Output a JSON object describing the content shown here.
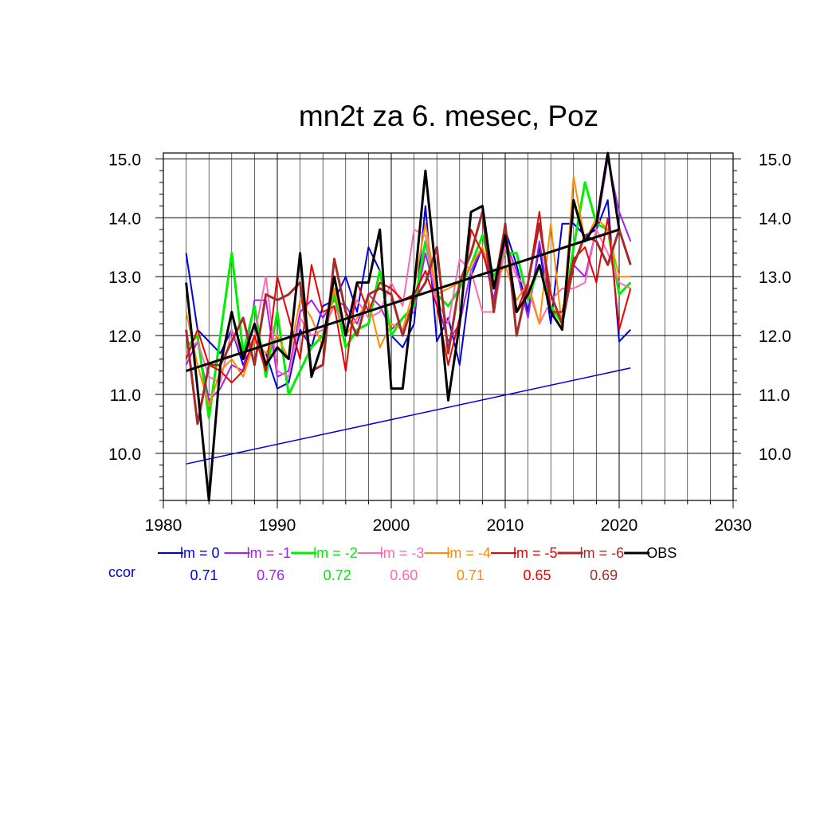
{
  "chart_data": {
    "type": "line",
    "title": "mn2t za 6. mesec, Poz",
    "xlim": [
      1980,
      2030
    ],
    "ylim": [
      9.2,
      15.1
    ],
    "x_ticks": [
      "1980",
      "1990",
      "2000",
      "2010",
      "2020",
      "2030"
    ],
    "y_ticks": [
      "10.0",
      "11.0",
      "12.0",
      "13.0",
      "14.0",
      "15.0"
    ],
    "grid": true,
    "legend_position": "bottom",
    "ccor_label": "ccor",
    "x": [
      1982,
      1983,
      1984,
      1985,
      1986,
      1987,
      1988,
      1989,
      1990,
      1991,
      1992,
      1993,
      1994,
      1995,
      1996,
      1997,
      1998,
      1999,
      2000,
      2001,
      2002,
      2003,
      2004,
      2005,
      2006,
      2007,
      2008,
      2009,
      2010,
      2011,
      2012,
      2013,
      2014,
      2015,
      2016,
      2017,
      2018,
      2019,
      2020,
      2021
    ],
    "series": [
      {
        "name": "lm = 0",
        "color": "#0000dd",
        "ccor": "0.71",
        "width": 2,
        "values": [
          13.4,
          12.1,
          11.9,
          11.7,
          12.1,
          11.5,
          11.9,
          11.7,
          11.1,
          11.2,
          12.1,
          11.8,
          12.5,
          12.6,
          13.0,
          12.4,
          13.5,
          13.1,
          12.0,
          11.8,
          12.2,
          14.2,
          11.9,
          12.3,
          11.5,
          13.0,
          13.5,
          12.6,
          13.8,
          13.2,
          12.4,
          13.5,
          12.2,
          13.9,
          13.9,
          13.7,
          13.8,
          14.3,
          11.9,
          12.1
        ]
      },
      {
        "name": "lm = -1",
        "color": "#a020f0",
        "ccor": "0.76",
        "width": 2,
        "values": [
          11.5,
          11.9,
          10.9,
          11.1,
          11.5,
          11.4,
          12.6,
          12.6,
          11.3,
          11.4,
          12.4,
          12.6,
          12.3,
          12.6,
          12.5,
          12.2,
          12.7,
          12.5,
          12.1,
          12.3,
          12.4,
          13.4,
          12.6,
          11.9,
          12.2,
          13.1,
          13.5,
          12.6,
          13.6,
          13.1,
          12.3,
          13.6,
          12.4,
          12.3,
          13.2,
          13.0,
          13.8,
          15.0,
          14.1,
          13.6
        ]
      },
      {
        "name": "lm = -2",
        "color": "#00ee00",
        "ccor": "0.72",
        "width": 3,
        "values": [
          11.8,
          12.0,
          10.6,
          12.0,
          13.4,
          11.7,
          12.5,
          11.3,
          12.4,
          11.0,
          11.4,
          11.8,
          12.0,
          12.7,
          11.8,
          12.1,
          12.2,
          13.1,
          12.0,
          12.3,
          12.5,
          13.6,
          12.7,
          12.5,
          12.8,
          13.2,
          13.7,
          13.0,
          13.4,
          13.4,
          12.6,
          13.2,
          12.5,
          12.2,
          13.5,
          14.6,
          13.9,
          13.8,
          12.7,
          12.9
        ]
      },
      {
        "name": "lm = -3",
        "color": "#ff69b4",
        "ccor": "0.60",
        "width": 2,
        "values": [
          11.7,
          11.9,
          11.3,
          11.2,
          12.1,
          11.6,
          12.0,
          13.0,
          11.4,
          11.3,
          12.3,
          12.0,
          12.1,
          12.5,
          12.1,
          12.6,
          12.3,
          12.4,
          12.9,
          12.5,
          13.8,
          13.7,
          12.6,
          12.2,
          13.3,
          13.1,
          12.4,
          12.4,
          13.5,
          13.0,
          12.8,
          12.2,
          12.6,
          12.8,
          12.8,
          12.9,
          13.8,
          13.4,
          12.9,
          12.8
        ]
      },
      {
        "name": "lm = -4",
        "color": "#ff8c00",
        "ccor": "0.71",
        "width": 2,
        "values": [
          12.4,
          11.5,
          10.8,
          11.4,
          11.6,
          11.3,
          11.9,
          11.7,
          12.0,
          11.6,
          12.6,
          12.3,
          11.8,
          12.8,
          12.0,
          12.3,
          12.6,
          11.8,
          12.2,
          12.1,
          12.8,
          13.9,
          12.7,
          12.8,
          12.9,
          13.2,
          13.5,
          12.9,
          13.2,
          12.6,
          12.9,
          12.2,
          13.9,
          12.1,
          14.7,
          13.6,
          14.0,
          13.8,
          13.0,
          13.0
        ]
      },
      {
        "name": "lm = -5",
        "color": "#ee0000",
        "ccor": "0.65",
        "width": 2,
        "values": [
          11.6,
          12.1,
          11.5,
          11.4,
          11.2,
          11.4,
          12.0,
          11.4,
          13.0,
          12.3,
          11.6,
          13.2,
          12.4,
          12.5,
          11.4,
          12.9,
          12.4,
          12.9,
          12.8,
          12.6,
          12.7,
          13.1,
          12.5,
          11.5,
          12.3,
          13.8,
          13.4,
          12.8,
          13.9,
          12.4,
          12.9,
          14.1,
          12.4,
          12.4,
          13.3,
          13.5,
          12.9,
          14.0,
          12.1,
          12.8
        ]
      },
      {
        "name": "lm = -6",
        "color": "#a52a2a",
        "ccor": "0.69",
        "width": 3,
        "values": [
          12.1,
          10.5,
          11.5,
          11.5,
          11.9,
          12.3,
          11.5,
          12.7,
          12.6,
          12.7,
          12.9,
          11.4,
          11.5,
          13.3,
          12.4,
          12.0,
          12.7,
          12.8,
          12.7,
          12.0,
          12.6,
          12.9,
          13.5,
          11.7,
          12.9,
          13.4,
          14.1,
          12.4,
          13.9,
          12.0,
          12.9,
          13.9,
          12.7,
          12.2,
          13.2,
          13.7,
          13.6,
          13.2,
          13.8,
          13.2
        ]
      },
      {
        "name": "OBS",
        "color": "#000000",
        "ccor": "",
        "width": 3,
        "values": [
          12.9,
          11.1,
          9.2,
          11.5,
          12.4,
          11.6,
          12.2,
          11.5,
          11.8,
          11.6,
          13.4,
          11.3,
          11.9,
          13.0,
          12.0,
          12.9,
          12.9,
          13.8,
          11.1,
          11.1,
          12.8,
          14.8,
          12.9,
          10.9,
          12.2,
          14.1,
          14.2,
          12.8,
          13.7,
          12.4,
          12.7,
          13.2,
          12.4,
          12.1,
          14.3,
          13.6,
          13.9,
          15.1,
          13.8,
          null
        ]
      }
    ],
    "trends": [
      {
        "name": "OBS trend",
        "color": "#000000",
        "x": [
          1982,
          2020
        ],
        "y": [
          11.4,
          13.8
        ],
        "width": 3
      },
      {
        "name": "lm = 0 trend",
        "color": "#0000dd",
        "x": [
          1982,
          2021
        ],
        "y": [
          9.82,
          11.45
        ],
        "width": 1.5
      }
    ]
  }
}
